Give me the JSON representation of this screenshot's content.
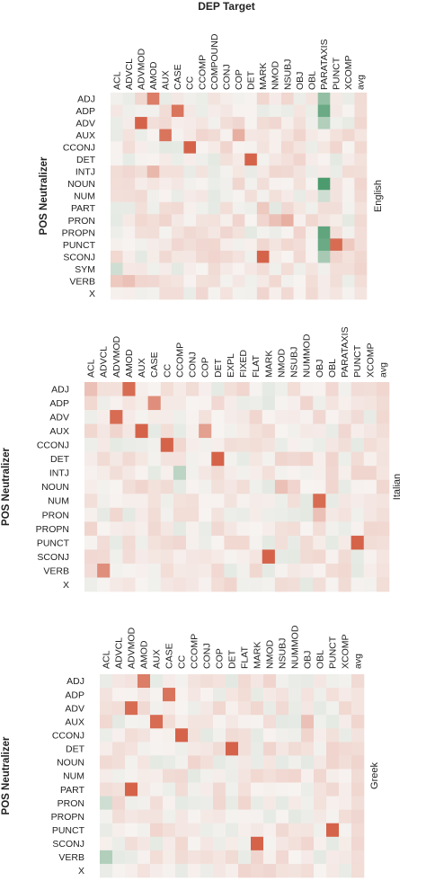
{
  "figure_title": "DEP Target",
  "row_axis_label": "POS Neutralizer",
  "colors": {
    "low": "#2e8b57",
    "mid": "#f7f3f1",
    "high": "#cf4a2c"
  },
  "chart_data": [
    {
      "type": "heatmap",
      "panel_label": "English",
      "columns": [
        "ACL",
        "ADVCL",
        "ADVMOD",
        "AMOD",
        "AUX",
        "CASE",
        "CC",
        "CCOMP",
        "COMPOUND",
        "CONJ",
        "COP",
        "DET",
        "MARK",
        "NMOD",
        "NSUBJ",
        "OBJ",
        "OBL",
        "PARATAXIS",
        "PUNCT",
        "XCOMP",
        "avg"
      ],
      "rows": [
        "ADJ",
        "ADP",
        "ADV",
        "AUX",
        "CCONJ",
        "DET",
        "INTJ",
        "NOUN",
        "NUM",
        "PART",
        "PRON",
        "PROPN",
        "PUNCT",
        "SCONJ",
        "SYM",
        "VERB",
        "X"
      ],
      "scale": [
        -1,
        1
      ],
      "highlights": [
        {
          "row": "ADJ",
          "col": "AMOD",
          "value": 0.7
        },
        {
          "row": "ADJ",
          "col": "PARATAXIS",
          "value": -0.5
        },
        {
          "row": "ADP",
          "col": "CASE",
          "value": 0.75
        },
        {
          "row": "ADP",
          "col": "PARATAXIS",
          "value": -0.7
        },
        {
          "row": "ADV",
          "col": "ADVMOD",
          "value": 0.85
        },
        {
          "row": "ADV",
          "col": "PARATAXIS",
          "value": -0.35
        },
        {
          "row": "AUX",
          "col": "AUX",
          "value": 0.75
        },
        {
          "row": "AUX",
          "col": "COP",
          "value": 0.4
        },
        {
          "row": "CCONJ",
          "col": "CC",
          "value": 0.85
        },
        {
          "row": "DET",
          "col": "DET",
          "value": 0.85
        },
        {
          "row": "INTJ",
          "col": "AMOD",
          "value": 0.35
        },
        {
          "row": "NOUN",
          "col": "PARATAXIS",
          "value": -0.85
        },
        {
          "row": "NUM",
          "col": "PARATAXIS",
          "value": -0.2
        },
        {
          "row": "PART",
          "col": "MARK",
          "value": 0.25
        },
        {
          "row": "PRON",
          "col": "NSUBJ",
          "value": 0.4
        },
        {
          "row": "PRON",
          "col": "NMOD",
          "value": 0.3
        },
        {
          "row": "PROPN",
          "col": "PARATAXIS",
          "value": -0.75
        },
        {
          "row": "PUNCT",
          "col": "PARATAXIS",
          "value": -0.7
        },
        {
          "row": "PUNCT",
          "col": "PUNCT",
          "value": 0.8
        },
        {
          "row": "PUNCT",
          "col": "XCOMP",
          "value": 0.25
        },
        {
          "row": "SCONJ",
          "col": "MARK",
          "value": 0.85
        },
        {
          "row": "SCONJ",
          "col": "PARATAXIS",
          "value": -0.4
        },
        {
          "row": "SYM",
          "col": "ACL",
          "value": -0.2
        },
        {
          "row": "VERB",
          "col": "ADVCL",
          "value": 0.3
        },
        {
          "row": "VERB",
          "col": "ACL",
          "value": 0.25
        }
      ]
    },
    {
      "type": "heatmap",
      "panel_label": "Italian",
      "columns": [
        "ACL",
        "ADVCL",
        "ADVMOD",
        "AMOD",
        "AUX",
        "CASE",
        "CC",
        "CCOMP",
        "CONJ",
        "COP",
        "DET",
        "EXPL",
        "FIXED",
        "FLAT",
        "MARK",
        "NMOD",
        "NSUBJ",
        "NUMMOD",
        "OBJ",
        "OBL",
        "PARATAXIS",
        "PUNCT",
        "XCOMP",
        "avg"
      ],
      "rows": [
        "ADJ",
        "ADP",
        "ADV",
        "AUX",
        "CCONJ",
        "DET",
        "INTJ",
        "NOUN",
        "NUM",
        "PRON",
        "PROPN",
        "PUNCT",
        "SCONJ",
        "VERB",
        "X"
      ],
      "scale": [
        -1,
        1
      ],
      "highlights": [
        {
          "row": "ADJ",
          "col": "AMOD",
          "value": 0.8
        },
        {
          "row": "ADJ",
          "col": "ACL",
          "value": 0.3
        },
        {
          "row": "ADP",
          "col": "CASE",
          "value": 0.6
        },
        {
          "row": "ADV",
          "col": "ADVMOD",
          "value": 0.8
        },
        {
          "row": "AUX",
          "col": "AUX",
          "value": 0.85
        },
        {
          "row": "AUX",
          "col": "COP",
          "value": 0.5
        },
        {
          "row": "CCONJ",
          "col": "CC",
          "value": 0.85
        },
        {
          "row": "DET",
          "col": "DET",
          "value": 0.85
        },
        {
          "row": "INTJ",
          "col": "CCOMP",
          "value": -0.3
        },
        {
          "row": "NUM",
          "col": "OBJ",
          "value": 0.8
        },
        {
          "row": "PUNCT",
          "col": "PUNCT",
          "value": 0.85
        },
        {
          "row": "SCONJ",
          "col": "MARK",
          "value": 0.85
        },
        {
          "row": "VERB",
          "col": "ADVCL",
          "value": 0.6
        },
        {
          "row": "PRON",
          "col": "OBJ",
          "value": 0.3
        },
        {
          "row": "NOUN",
          "col": "NMOD",
          "value": 0.3
        }
      ]
    },
    {
      "type": "heatmap",
      "panel_label": "Greek",
      "columns": [
        "ACL",
        "ADVCL",
        "ADVMOD",
        "AMOD",
        "AUX",
        "CASE",
        "CC",
        "CCOMP",
        "CONJ",
        "COP",
        "DET",
        "FLAT",
        "MARK",
        "NMOD",
        "NSUBJ",
        "NUMMOD",
        "OBJ",
        "OBL",
        "PUNCT",
        "XCOMP",
        "avg"
      ],
      "rows": [
        "ADJ",
        "ADP",
        "ADV",
        "AUX",
        "CCONJ",
        "DET",
        "NOUN",
        "NUM",
        "PART",
        "PRON",
        "PROPN",
        "PUNCT",
        "SCONJ",
        "VERB",
        "X"
      ],
      "scale": [
        -1,
        1
      ],
      "highlights": [
        {
          "row": "ADJ",
          "col": "AMOD",
          "value": 0.7
        },
        {
          "row": "ADP",
          "col": "CASE",
          "value": 0.75
        },
        {
          "row": "ADV",
          "col": "ADVMOD",
          "value": 0.8
        },
        {
          "row": "AUX",
          "col": "AUX",
          "value": 0.8
        },
        {
          "row": "CCONJ",
          "col": "CC",
          "value": 0.85
        },
        {
          "row": "DET",
          "col": "DET",
          "value": 0.85
        },
        {
          "row": "PART",
          "col": "ADVMOD",
          "value": 0.85
        },
        {
          "row": "PUNCT",
          "col": "PUNCT",
          "value": 0.85
        },
        {
          "row": "SCONJ",
          "col": "MARK",
          "value": 0.85
        },
        {
          "row": "VERB",
          "col": "ACL",
          "value": -0.35
        },
        {
          "row": "PRON",
          "col": "ACL",
          "value": -0.2
        },
        {
          "row": "AUX",
          "col": "OBJ",
          "value": 0.3
        }
      ]
    }
  ]
}
